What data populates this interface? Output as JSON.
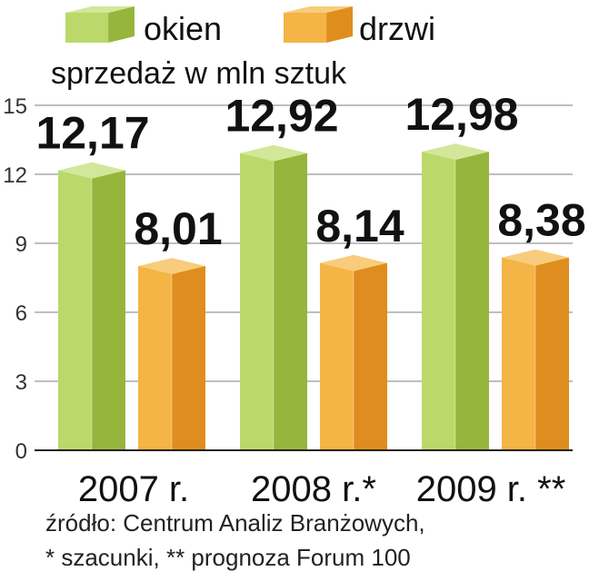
{
  "chart_data": {
    "type": "bar",
    "title": "",
    "subtitle": "sprzedaż w mln sztuk",
    "xlabel": "",
    "ylabel": "",
    "categories": [
      "2007 r.",
      "2008 r.*",
      "2009 r. **"
    ],
    "series": [
      {
        "name": "okien",
        "values": [
          12.17,
          12.92,
          12.98
        ],
        "labels": [
          "12,17",
          "12,92",
          "12,98"
        ],
        "color": "#a7c84a"
      },
      {
        "name": "drzwi",
        "values": [
          8.01,
          8.14,
          8.38
        ],
        "labels": [
          "8,01",
          "8,14",
          "8,38"
        ],
        "color": "#eb9f2e"
      }
    ],
    "ylim": [
      0,
      15
    ],
    "yticks": [
      0,
      3,
      6,
      9,
      12,
      15
    ],
    "grid": true,
    "legend_position": "top"
  },
  "footnotes": [
    "źródło: Centrum Analiz Branżowych,",
    "* szacunki, ** prognoza Forum 100"
  ],
  "colors": {
    "okien_front": "#bad96a",
    "okien_side": "#96b53d",
    "okien_top": "#d3e79a",
    "drzwi_front": "#f4b446",
    "drzwi_side": "#df8d1e",
    "drzwi_top": "#f8cc7c",
    "grid": "#aaaaaa",
    "axis": "#222222"
  }
}
